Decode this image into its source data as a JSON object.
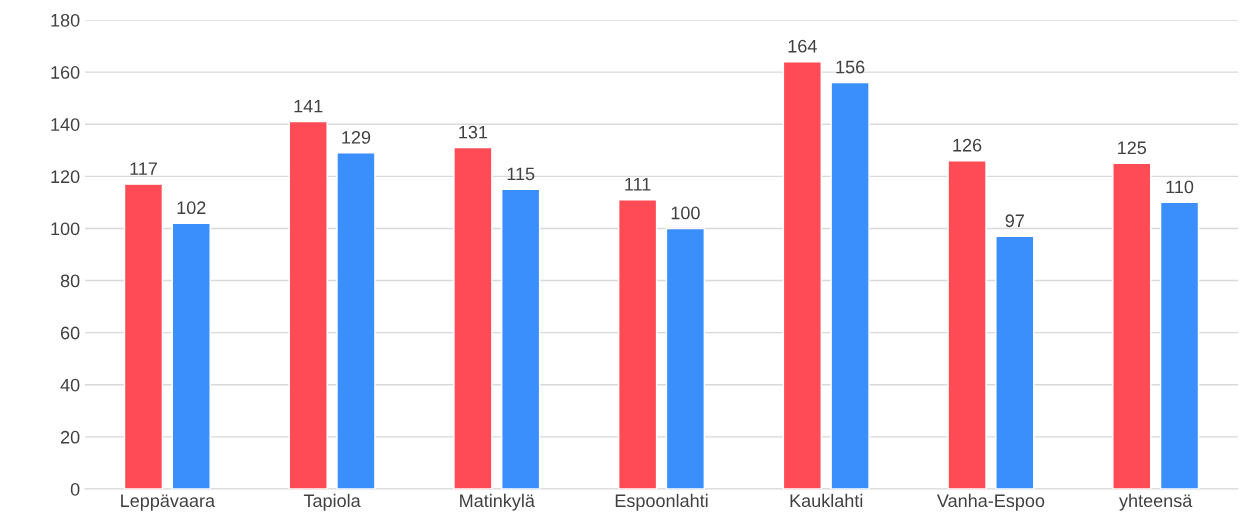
{
  "chart_data": {
    "type": "bar",
    "categories": [
      "Leppävaara",
      "Tapiola",
      "Matinkylä",
      "Espoonlahti",
      "Kauklahti",
      "Vanha-Espoo",
      "yhteensä"
    ],
    "series": [
      {
        "color": "#ff4b55",
        "values": [
          117,
          141,
          131,
          111,
          164,
          126,
          125
        ]
      },
      {
        "color": "#3a8ffd",
        "values": [
          102,
          129,
          115,
          100,
          156,
          97,
          110
        ]
      }
    ],
    "ylim": [
      0,
      180
    ],
    "yticks": [
      0,
      20,
      40,
      60,
      80,
      100,
      120,
      140,
      160,
      180
    ],
    "grid": "y",
    "legend": false,
    "data_labels": true
  }
}
